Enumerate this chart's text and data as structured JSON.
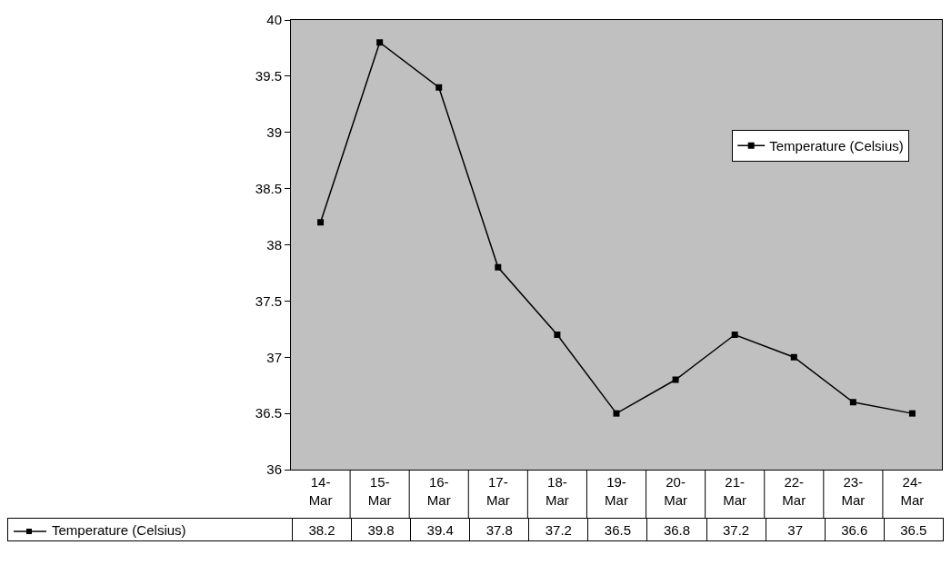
{
  "chart_data": {
    "type": "line",
    "categories": [
      "14-Mar",
      "15-Mar",
      "16-Mar",
      "17-Mar",
      "18-Mar",
      "19-Mar",
      "20-Mar",
      "21-Mar",
      "22-Mar",
      "23-Mar",
      "24-Mar"
    ],
    "series": [
      {
        "name": "Temperature (Celsius)",
        "color": "#000000",
        "values": [
          38.2,
          39.8,
          39.4,
          37.8,
          37.2,
          36.5,
          36.8,
          37.2,
          37,
          36.6,
          36.5
        ]
      }
    ],
    "ylim": [
      36,
      40
    ],
    "yticks": [
      36,
      36.5,
      37,
      37.5,
      38,
      38.5,
      39,
      39.5,
      40
    ],
    "grid": false,
    "legend": "top right",
    "marker": "square",
    "line_style": "solid",
    "data_labels": true
  }
}
